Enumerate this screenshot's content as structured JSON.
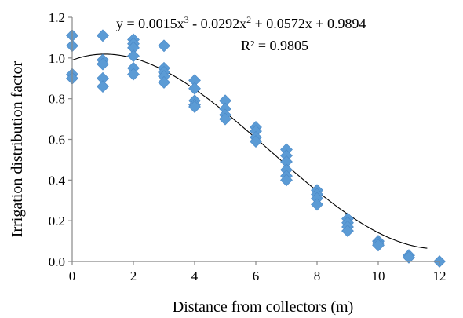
{
  "chart_data": {
    "type": "scatter",
    "title": "",
    "xlabel": "Distance from collectors (m)",
    "ylabel": "Irrigation distribution factor",
    "xlim": [
      0,
      12
    ],
    "ylim": [
      0,
      1.2
    ],
    "xticks": [
      0,
      2,
      4,
      6,
      8,
      10,
      12
    ],
    "yticks": [
      "0.0",
      "0.2",
      "0.4",
      "0.6",
      "0.8",
      "1.0",
      "1.2"
    ],
    "grid": false,
    "legend": "none",
    "series": [
      {
        "marker": "diamond",
        "color": "#5B9BD5",
        "points": [
          [
            0,
            1.11
          ],
          [
            0,
            1.06
          ],
          [
            0,
            0.92
          ],
          [
            0,
            0.9
          ],
          [
            1,
            1.11
          ],
          [
            1,
            0.99
          ],
          [
            1,
            0.97
          ],
          [
            1,
            0.9
          ],
          [
            1,
            0.86
          ],
          [
            2,
            1.09
          ],
          [
            2,
            1.07
          ],
          [
            2,
            1.05
          ],
          [
            2,
            1.01
          ],
          [
            2,
            0.95
          ],
          [
            2,
            0.92
          ],
          [
            3,
            1.06
          ],
          [
            3,
            0.95
          ],
          [
            3,
            0.93
          ],
          [
            3,
            0.91
          ],
          [
            3,
            0.88
          ],
          [
            4,
            0.89
          ],
          [
            4,
            0.85
          ],
          [
            4,
            0.79
          ],
          [
            4,
            0.77
          ],
          [
            4,
            0.76
          ],
          [
            5,
            0.79
          ],
          [
            5,
            0.75
          ],
          [
            5,
            0.72
          ],
          [
            5,
            0.7
          ],
          [
            6,
            0.66
          ],
          [
            6,
            0.64
          ],
          [
            6,
            0.61
          ],
          [
            6,
            0.59
          ],
          [
            7,
            0.55
          ],
          [
            7,
            0.52
          ],
          [
            7,
            0.49
          ],
          [
            7,
            0.45
          ],
          [
            7,
            0.42
          ],
          [
            7,
            0.4
          ],
          [
            8,
            0.35
          ],
          [
            8,
            0.33
          ],
          [
            8,
            0.31
          ],
          [
            8,
            0.28
          ],
          [
            9,
            0.21
          ],
          [
            9,
            0.19
          ],
          [
            9,
            0.17
          ],
          [
            9,
            0.15
          ],
          [
            10,
            0.1
          ],
          [
            10,
            0.09
          ],
          [
            10,
            0.08
          ],
          [
            11,
            0.03
          ],
          [
            11,
            0.02
          ],
          [
            12,
            0.0
          ]
        ]
      }
    ],
    "trendline": {
      "type": "polynomial",
      "coefficients": [
        0.0015,
        -0.0292,
        0.0572,
        0.9894
      ],
      "color": "#000000",
      "equation_parts": {
        "lead": "y = 0.0015x",
        "exp3": "3",
        "mid": " - 0.0292x",
        "exp2": "2",
        "tail": " + 0.0572x + 0.9894"
      },
      "r2_label": "R² = 0.9805"
    }
  }
}
